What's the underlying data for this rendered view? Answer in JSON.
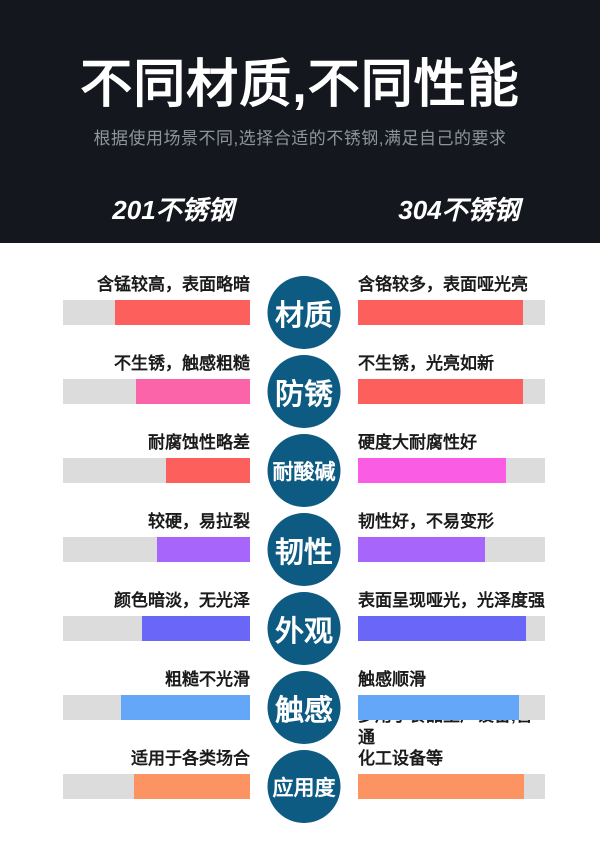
{
  "header": {
    "title": "不同材质,不同性能",
    "subtitle": "根据使用场景不同,选择合适的不锈钢,满足自己的要求",
    "left_column": "201不锈钢",
    "right_column": "304不锈钢",
    "background_color": "#15171f",
    "title_color": "#ffffff",
    "subtitle_color": "#8e939c"
  },
  "style": {
    "track_color": "#dcdcdc",
    "badge_color": "#0d5a82",
    "badge_text_color": "#ffffff"
  },
  "rows": [
    {
      "category": "材质",
      "left": {
        "text": "含锰较高，表面略暗",
        "color": "#fc5f5c",
        "fill_percent": 72
      },
      "right": {
        "text": "含铬较多，表面哑光亮",
        "color": "#fc5f5c",
        "fill_percent": 88
      }
    },
    {
      "category": "防锈",
      "left": {
        "text": "不生锈，触感粗糙",
        "color": "#fc64aa",
        "fill_percent": 61
      },
      "right": {
        "text": "不生锈，光亮如新",
        "color": "#fc5f5c",
        "fill_percent": 88
      }
    },
    {
      "category": "耐酸碱",
      "left": {
        "text": "耐腐蚀性略差",
        "color": "#fc5f5c",
        "fill_percent": 45
      },
      "right": {
        "text": "硬度大耐腐性好",
        "color": "#fa5ce4",
        "fill_percent": 79
      }
    },
    {
      "category": "韧性",
      "left": {
        "text": "较硬，易拉裂",
        "color": "#a765fb",
        "fill_percent": 50
      },
      "right": {
        "text": "韧性好，不易变形",
        "color": "#a765fb",
        "fill_percent": 68
      }
    },
    {
      "category": "外观",
      "left": {
        "text": "颜色暗淡，无光泽",
        "color": "#6a66f8",
        "fill_percent": 58
      },
      "right": {
        "text": "表面呈现哑光，光泽度强",
        "color": "#6a66f8",
        "fill_percent": 90
      }
    },
    {
      "category": "触感",
      "left": {
        "text": "粗糙不光滑",
        "color": "#64a7f8",
        "fill_percent": 69
      },
      "right": {
        "text": "触感顺滑",
        "color": "#64a7f8",
        "fill_percent": 86
      }
    },
    {
      "category": "应用度",
      "left": {
        "text": "适用于各类场合",
        "color": "#fb9362",
        "fill_percent": 62
      },
      "right": {
        "text": "多用于食品生产设备,普通\n化工设备等",
        "color": "#fb9362",
        "fill_percent": 89
      }
    }
  ]
}
